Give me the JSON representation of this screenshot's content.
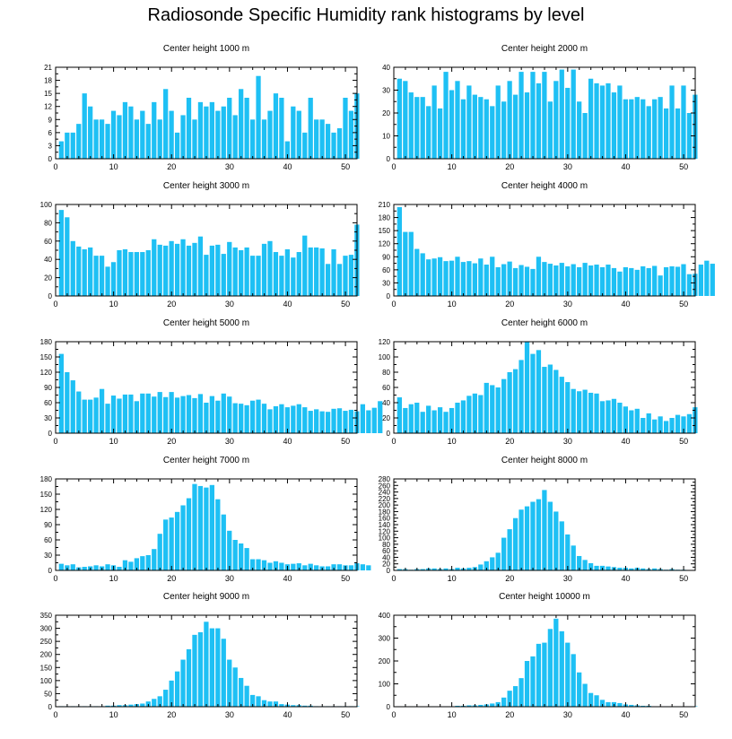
{
  "title": "Radiosonde Specific Humidity rank histograms by level",
  "colors": {
    "bar": "#1ec0f4",
    "axis": "#000000"
  },
  "chart_data": [
    {
      "type": "bar",
      "title": "Center height 1000 m",
      "xlim": [
        0,
        52
      ],
      "ylim": [
        0,
        21
      ],
      "xticks": [
        0,
        10,
        20,
        30,
        40,
        50
      ],
      "yticks": [
        0,
        3,
        6,
        9,
        12,
        15,
        18,
        21
      ],
      "values": [
        4,
        6,
        6,
        8,
        15,
        12,
        9,
        9,
        8,
        11,
        10,
        13,
        12,
        9,
        11,
        8,
        13,
        9,
        16,
        11,
        6,
        10,
        14,
        9,
        13,
        12,
        13,
        11,
        12,
        14,
        10,
        16,
        14,
        9,
        19,
        9,
        11,
        15,
        14,
        4,
        12,
        11,
        6,
        14,
        9,
        9,
        8,
        6,
        7,
        14,
        11,
        15
      ]
    },
    {
      "type": "bar",
      "title": "Center height 2000 m",
      "xlim": [
        0,
        52
      ],
      "ylim": [
        0,
        40
      ],
      "xticks": [
        0,
        10,
        20,
        30,
        40,
        50
      ],
      "yticks": [
        0,
        10,
        20,
        30,
        40
      ],
      "values": [
        35,
        34,
        29,
        27,
        27,
        23,
        32,
        22,
        38,
        30,
        34,
        26,
        32,
        28,
        27,
        26,
        23,
        32,
        25,
        34,
        28,
        38,
        29,
        38,
        33,
        38,
        25,
        34,
        39,
        31,
        39,
        25,
        20,
        35,
        33,
        32,
        33,
        29,
        32,
        26,
        26,
        27,
        26,
        23,
        26,
        27,
        22,
        32,
        22,
        32,
        20,
        28
      ]
    },
    {
      "type": "bar",
      "title": "Center height 3000 m",
      "xlim": [
        0,
        52
      ],
      "ylim": [
        0,
        100
      ],
      "xticks": [
        0,
        10,
        20,
        30,
        40,
        50
      ],
      "yticks": [
        0,
        20,
        40,
        60,
        80,
        100
      ],
      "values": [
        94,
        86,
        60,
        54,
        51,
        53,
        44,
        44,
        32,
        37,
        50,
        51,
        48,
        48,
        48,
        50,
        62,
        56,
        55,
        60,
        57,
        62,
        55,
        58,
        65,
        45,
        55,
        56,
        46,
        59,
        53,
        50,
        53,
        44,
        44,
        57,
        60,
        48,
        44,
        51,
        42,
        48,
        66,
        53,
        53,
        52,
        35,
        51,
        35,
        44,
        45,
        78
      ]
    },
    {
      "type": "bar",
      "title": "Center height 4000 m",
      "xlim": [
        0,
        52
      ],
      "ylim": [
        0,
        210
      ],
      "xticks": [
        0,
        10,
        20,
        30,
        40,
        50
      ],
      "yticks": [
        0,
        30,
        60,
        90,
        120,
        150,
        180,
        210
      ],
      "values": [
        204,
        147,
        147,
        108,
        98,
        84,
        86,
        89,
        80,
        81,
        90,
        78,
        80,
        75,
        86,
        72,
        90,
        66,
        73,
        79,
        64,
        71,
        67,
        62,
        90,
        78,
        74,
        70,
        76,
        68,
        73,
        66,
        76,
        70,
        72,
        66,
        72,
        64,
        56,
        66,
        64,
        60,
        68,
        64,
        69,
        47,
        66,
        68,
        67,
        73,
        50,
        51,
        72,
        81,
        74
      ]
    },
    {
      "type": "bar",
      "title": "Center height 5000 m",
      "xlim": [
        0,
        52
      ],
      "ylim": [
        0,
        180
      ],
      "xticks": [
        0,
        10,
        20,
        30,
        40,
        50
      ],
      "yticks": [
        0,
        30,
        60,
        90,
        120,
        150,
        180
      ],
      "values": [
        156,
        120,
        104,
        82,
        66,
        66,
        70,
        87,
        58,
        74,
        68,
        76,
        76,
        63,
        78,
        78,
        72,
        81,
        71,
        81,
        70,
        73,
        75,
        69,
        77,
        60,
        73,
        64,
        78,
        72,
        59,
        58,
        55,
        64,
        66,
        58,
        47,
        53,
        57,
        51,
        54,
        57,
        51,
        44,
        47,
        43,
        42,
        48,
        49,
        44,
        46,
        43,
        57,
        45,
        50,
        63
      ]
    },
    {
      "type": "bar",
      "title": "Center height 6000 m",
      "xlim": [
        0,
        52
      ],
      "ylim": [
        0,
        120
      ],
      "xticks": [
        0,
        10,
        20,
        30,
        40,
        50
      ],
      "yticks": [
        0,
        20,
        40,
        60,
        80,
        100,
        120
      ],
      "values": [
        47,
        33,
        38,
        40,
        28,
        36,
        30,
        34,
        28,
        33,
        40,
        43,
        49,
        52,
        50,
        66,
        63,
        60,
        71,
        80,
        84,
        96,
        120,
        104,
        109,
        87,
        90,
        83,
        74,
        67,
        58,
        55,
        57,
        53,
        52,
        42,
        43,
        45,
        40,
        35,
        30,
        32,
        20,
        26,
        18,
        22,
        16,
        20,
        24,
        22,
        25,
        34
      ]
    },
    {
      "type": "bar",
      "title": "Center height 7000 m",
      "xlim": [
        0,
        52
      ],
      "ylim": [
        0,
        180
      ],
      "xticks": [
        0,
        10,
        20,
        30,
        40,
        50
      ],
      "yticks": [
        0,
        30,
        60,
        90,
        120,
        150,
        180
      ],
      "values": [
        13,
        10,
        12,
        6,
        7,
        8,
        10,
        8,
        12,
        10,
        7,
        20,
        17,
        24,
        28,
        30,
        42,
        72,
        100,
        104,
        115,
        128,
        142,
        170,
        166,
        163,
        168,
        140,
        110,
        78,
        60,
        53,
        44,
        22,
        22,
        20,
        15,
        18,
        15,
        12,
        13,
        14,
        10,
        13,
        10,
        8,
        8,
        12,
        12,
        10,
        10,
        14,
        12,
        10
      ]
    },
    {
      "type": "bar",
      "title": "Center height 8000 m",
      "xlim": [
        0,
        52
      ],
      "ylim": [
        0,
        280
      ],
      "xticks": [
        0,
        10,
        20,
        30,
        40,
        50
      ],
      "yticks": [
        0,
        20,
        40,
        60,
        80,
        100,
        120,
        140,
        160,
        180,
        200,
        220,
        240,
        260,
        280
      ],
      "values": [
        4,
        4,
        2,
        4,
        4,
        6,
        6,
        4,
        6,
        4,
        8,
        6,
        8,
        10,
        18,
        28,
        40,
        54,
        100,
        126,
        160,
        186,
        196,
        210,
        218,
        246,
        210,
        180,
        150,
        110,
        76,
        44,
        32,
        22,
        14,
        14,
        12,
        10,
        8,
        8,
        6,
        8,
        6,
        4,
        6,
        4,
        2,
        4,
        2,
        2
      ]
    },
    {
      "type": "bar",
      "title": "Center height 9000 m",
      "xlim": [
        0,
        52
      ],
      "ylim": [
        0,
        350
      ],
      "xticks": [
        0,
        10,
        20,
        30,
        40,
        50
      ],
      "yticks": [
        0,
        50,
        100,
        150,
        200,
        250,
        300,
        350
      ],
      "values": [
        2,
        2,
        2,
        2,
        2,
        2,
        2,
        2,
        4,
        4,
        6,
        6,
        8,
        10,
        12,
        20,
        30,
        40,
        65,
        100,
        135,
        180,
        220,
        275,
        285,
        325,
        300,
        300,
        260,
        180,
        150,
        110,
        80,
        45,
        40,
        25,
        20,
        20,
        10,
        8,
        6,
        6,
        4,
        4,
        2,
        2,
        2,
        2,
        2,
        2,
        2,
        2
      ]
    },
    {
      "type": "bar",
      "title": "Center height 10000 m",
      "xlim": [
        0,
        52
      ],
      "ylim": [
        0,
        400
      ],
      "xticks": [
        0,
        10,
        20,
        30,
        40,
        50
      ],
      "yticks": [
        0,
        100,
        200,
        300,
        400
      ],
      "values": [
        2,
        2,
        2,
        2,
        2,
        2,
        2,
        2,
        2,
        2,
        4,
        4,
        6,
        6,
        8,
        10,
        14,
        20,
        40,
        70,
        90,
        125,
        200,
        220,
        275,
        280,
        340,
        385,
        330,
        280,
        230,
        150,
        100,
        60,
        50,
        30,
        20,
        20,
        16,
        10,
        8,
        6,
        4,
        4,
        2,
        2,
        2,
        2,
        2,
        2,
        2,
        2
      ]
    }
  ]
}
